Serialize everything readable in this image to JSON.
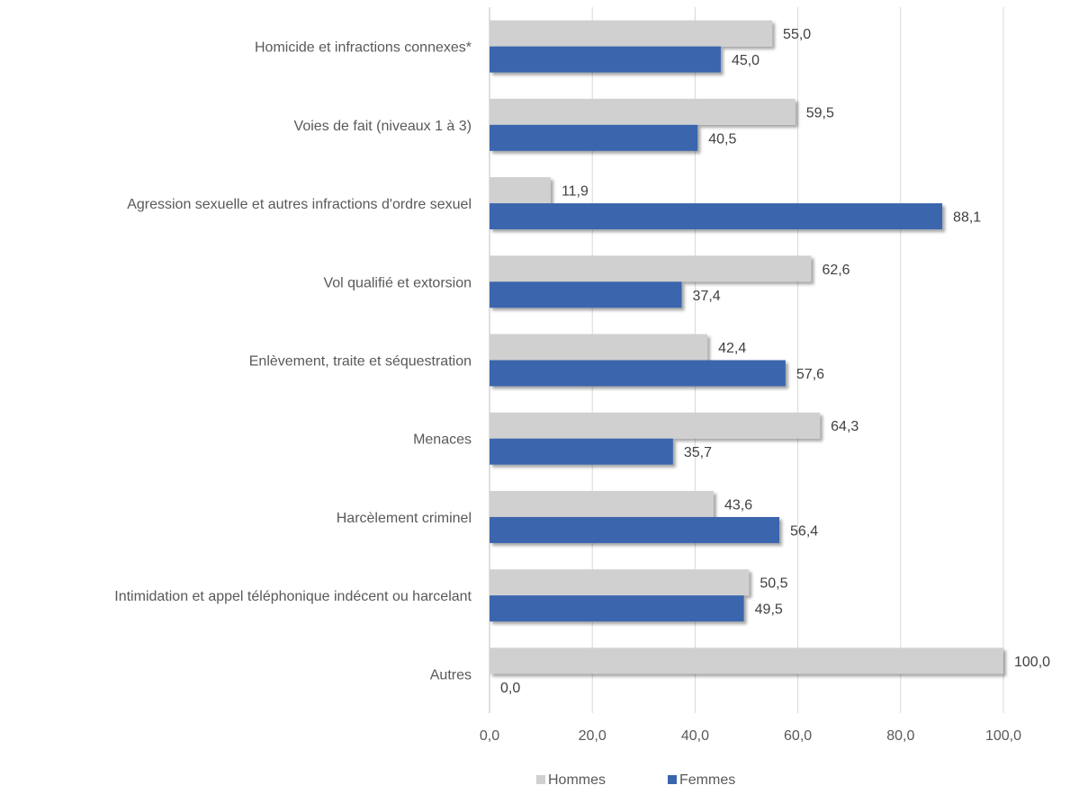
{
  "chart_data": {
    "type": "bar",
    "orientation": "horizontal",
    "categories": [
      "Homicide et infractions connexes*",
      "Voies de fait (niveaux 1 à 3)",
      "Agression sexuelle et autres infractions d'ordre sexuel",
      "Vol qualifié et extorsion",
      "Enlèvement, traite et séquestration",
      "Menaces",
      "Harcèlement criminel",
      "Intimidation et appel téléphonique indécent ou harcelant",
      "Autres"
    ],
    "series": [
      {
        "name": "Hommes",
        "color": "#d0d0d0",
        "values": [
          55.0,
          59.5,
          11.9,
          62.6,
          42.4,
          64.3,
          43.6,
          50.5,
          100.0
        ],
        "labels": [
          "55,0",
          "59,5",
          "11,9",
          "62,6",
          "42,4",
          "64,3",
          "43,6",
          "50,5",
          "100,0"
        ]
      },
      {
        "name": "Femmes",
        "color": "#3b66ad",
        "values": [
          45.0,
          40.5,
          88.1,
          37.4,
          57.6,
          35.7,
          56.4,
          49.5,
          0.0
        ],
        "labels": [
          "45,0",
          "40,5",
          "88,1",
          "37,4",
          "57,6",
          "35,7",
          "56,4",
          "49,5",
          "0,0"
        ]
      }
    ],
    "xlim": [
      0,
      100
    ],
    "xticks": [
      0,
      20,
      40,
      60,
      80,
      100
    ],
    "xtick_labels": [
      "0,0",
      "20,0",
      "40,0",
      "60,0",
      "80,0",
      "100,0"
    ],
    "grid": true,
    "legend_position": "bottom",
    "title": "",
    "xlabel": "",
    "ylabel": ""
  }
}
